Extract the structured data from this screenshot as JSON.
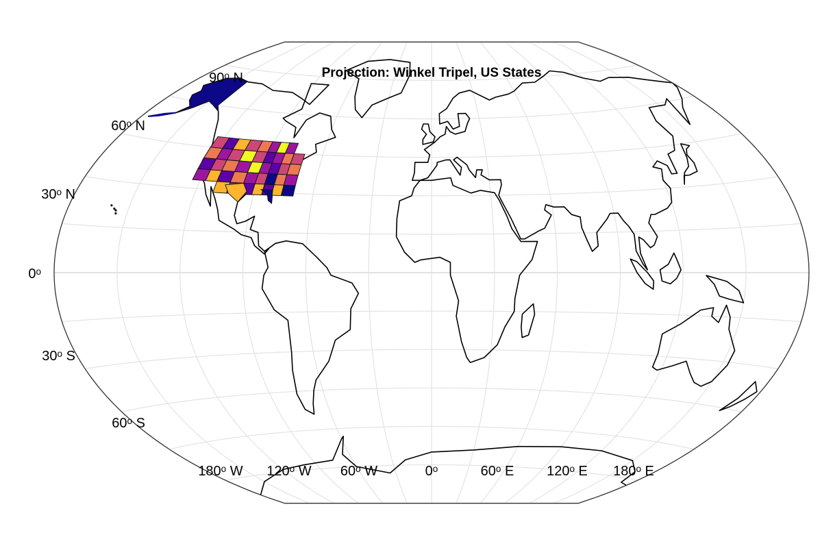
{
  "figure": {
    "title": "Projection: Winkel Tripel, US States"
  },
  "axes": {
    "lat_ticks": [
      "90ᵒ N",
      "60ᵒ N",
      "30ᵒ N",
      "0ᵒ",
      "30ᵒ S",
      "60ᵒ S"
    ],
    "lon_ticks": [
      "180ᵒ W",
      "120ᵒ W",
      "60ᵒ W",
      "0ᵒ",
      "60ᵒ E",
      "120ᵒ E",
      "180ᵒ E"
    ]
  },
  "chart_data": {
    "type": "heatmap",
    "projection": "Winkel Tripel",
    "title": "Projection: Winkel Tripel, US States",
    "grid": true,
    "colormap": "plasma",
    "regions": "US States",
    "palette": [
      "#0d0887",
      "#5c01a6",
      "#9c179e",
      "#cc4778",
      "#ed7953",
      "#fdb42f",
      "#f0f921"
    ]
  }
}
